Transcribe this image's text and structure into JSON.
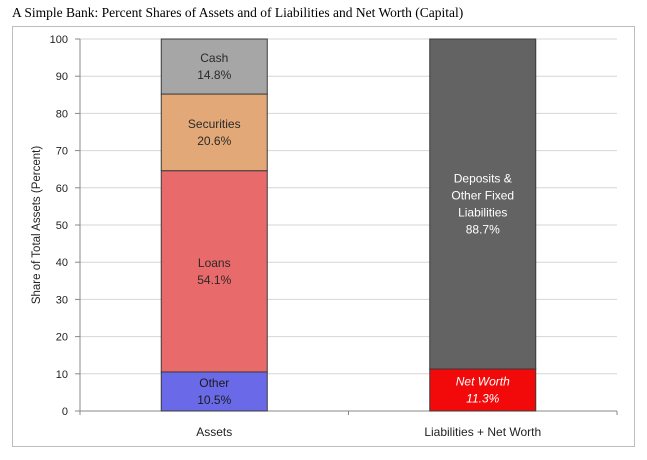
{
  "title": "A Simple Bank: Percent Shares of Assets and of Liabilities and Net Worth (Capital)",
  "chart_data": {
    "type": "bar",
    "stacked": true,
    "title": "A Simple Bank: Percent Shares of Assets and of Liabilities and Net Worth (Capital)",
    "xlabel": "",
    "ylabel": "Share of Total Assets (Percent)",
    "ylim": [
      0,
      100
    ],
    "yticks": [
      0,
      10,
      20,
      30,
      40,
      50,
      60,
      70,
      80,
      90,
      100
    ],
    "grid": true,
    "legend": "none",
    "categories": [
      "Assets",
      "Liabilities + Net Worth"
    ],
    "series": [
      {
        "name": "Other",
        "values": [
          10.5,
          null
        ],
        "label": "10.5%",
        "color": "#6a6ae8",
        "text_color": "#1a1a1a",
        "italic": false
      },
      {
        "name": "Loans",
        "values": [
          54.1,
          null
        ],
        "label": "54.1%",
        "color": "#e96a6a",
        "text_color": "#2a2a2a",
        "italic": false
      },
      {
        "name": "Securities",
        "values": [
          20.6,
          null
        ],
        "label": "20.6%",
        "color": "#e3a877",
        "text_color": "#2a2a2a",
        "italic": false
      },
      {
        "name": "Cash",
        "values": [
          14.8,
          null
        ],
        "label": "14.8%",
        "color": "#a6a6a6",
        "text_color": "#2a2a2a",
        "italic": false
      },
      {
        "name": "Net Worth",
        "values": [
          null,
          11.3
        ],
        "label": "11.3%",
        "color": "#f20a0a",
        "text_color": "#ffffff",
        "italic": true
      },
      {
        "name": "Deposits & Other Fixed Liabilities",
        "values": [
          null,
          88.7
        ],
        "label": "88.7%",
        "color": "#636363",
        "text_color": "#ffffff",
        "italic": false
      }
    ]
  }
}
